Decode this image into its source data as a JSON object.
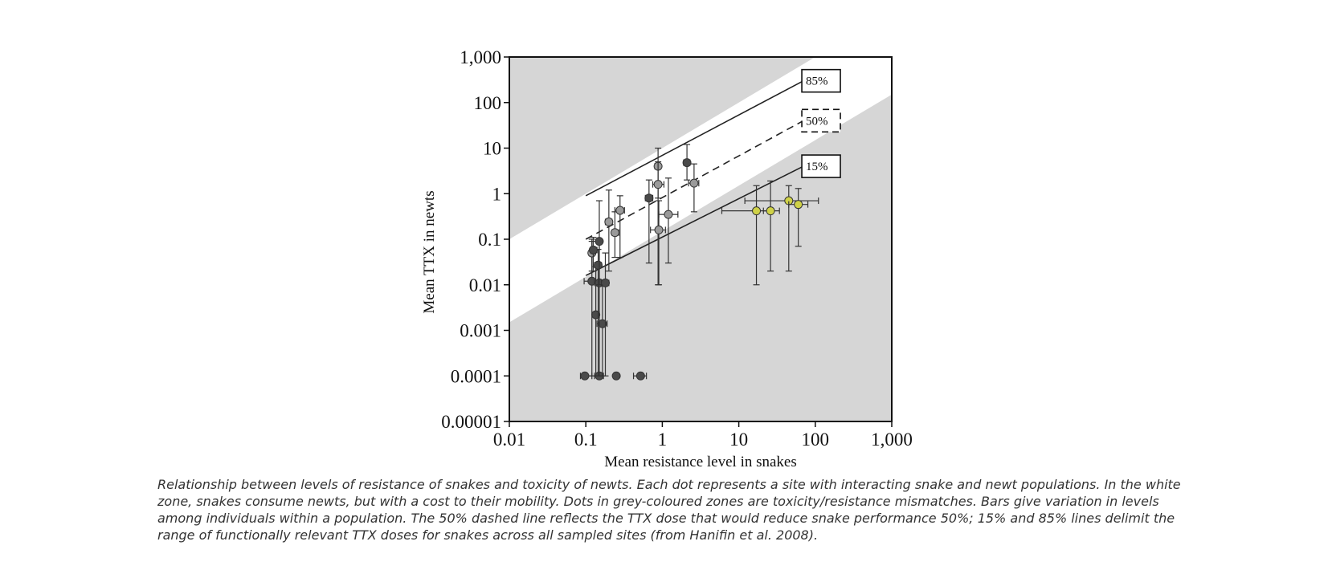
{
  "chart_data": {
    "type": "scatter",
    "xlabel": "Mean resistance level in snakes",
    "ylabel": "Mean TTX in newts",
    "xscale": "log",
    "yscale": "log",
    "xlim": [
      0.01,
      1000
    ],
    "ylim": [
      1e-05,
      1000
    ],
    "x_ticks": [
      "0.01",
      "0.1",
      "1",
      "10",
      "100",
      "1,000"
    ],
    "y_ticks": [
      "0.00001",
      "0.0001",
      "0.001",
      "0.01",
      "0.1",
      "1",
      "10",
      "100",
      "1,000"
    ],
    "colors": {
      "grey_zone": "#d6d6d6",
      "white_zone": "#ffffff",
      "dark_dot": "#4a4a4a",
      "grey_dot": "#9a9a9a",
      "yellow_dot": "#cfd147"
    },
    "reference_lines": [
      {
        "label": "85%",
        "style": "solid",
        "points": [
          [
            0.1,
            0.9
          ],
          [
            70,
            300
          ]
        ]
      },
      {
        "label": "50%",
        "style": "dashed",
        "points": [
          [
            0.1,
            0.1
          ],
          [
            70,
            40
          ]
        ]
      },
      {
        "label": "15%",
        "style": "solid",
        "points": [
          [
            0.1,
            0.016
          ],
          [
            70,
            4
          ]
        ]
      }
    ],
    "zone_boundaries": [
      {
        "points": [
          [
            0.01,
            0.1
          ],
          [
            100,
            1000
          ]
        ]
      },
      {
        "points": [
          [
            0.01,
            0.0015
          ],
          [
            1000,
            150
          ]
        ]
      }
    ],
    "points": [
      {
        "x": 0.097,
        "y": 0.0001,
        "xerr": [
          0.085,
          0.12
        ],
        "yerr": [
          0.0001,
          0.0001
        ],
        "tone": "dark"
      },
      {
        "x": 0.15,
        "y": 0.0001,
        "xerr": [
          0.13,
          0.17
        ],
        "yerr": [
          0.0001,
          0.0001
        ],
        "tone": "dark"
      },
      {
        "x": 0.25,
        "y": 0.0001,
        "xerr": [
          0.25,
          0.25
        ],
        "yerr": [
          0.0001,
          0.0001
        ],
        "tone": "dark"
      },
      {
        "x": 0.52,
        "y": 0.0001,
        "xerr": [
          0.42,
          0.62
        ],
        "yerr": [
          0.0001,
          0.0001
        ],
        "tone": "dark"
      },
      {
        "x": 0.135,
        "y": 0.0022,
        "xerr": [
          0.125,
          0.15
        ],
        "yerr": [
          0.0001,
          0.025
        ],
        "tone": "dark"
      },
      {
        "x": 0.165,
        "y": 0.0014,
        "xerr": [
          0.14,
          0.19
        ],
        "yerr": [
          0.0001,
          0.01
        ],
        "tone": "dark"
      },
      {
        "x": 0.12,
        "y": 0.012,
        "xerr": [
          0.095,
          0.15
        ],
        "yerr": [
          0.0001,
          0.1
        ],
        "tone": "dark"
      },
      {
        "x": 0.15,
        "y": 0.011,
        "xerr": [
          0.13,
          0.17
        ],
        "yerr": [
          0.0001,
          0.09
        ],
        "tone": "dark"
      },
      {
        "x": 0.18,
        "y": 0.011,
        "xerr": [
          0.16,
          0.2
        ],
        "yerr": [
          0.0001,
          0.05
        ],
        "tone": "dark"
      },
      {
        "x": 0.145,
        "y": 0.027,
        "xerr": [
          0.13,
          0.16
        ],
        "yerr": [
          0.0001,
          0.06
        ],
        "tone": "dark"
      },
      {
        "x": 0.12,
        "y": 0.05,
        "xerr": [
          0.11,
          0.13
        ],
        "yerr": [
          0.02,
          0.09
        ],
        "tone": "grey"
      },
      {
        "x": 0.125,
        "y": 0.058,
        "xerr": [
          0.115,
          0.14
        ],
        "yerr": [
          0.02,
          0.11
        ],
        "tone": "dark"
      },
      {
        "x": 0.15,
        "y": 0.09,
        "xerr": [
          0.14,
          0.16
        ],
        "yerr": [
          0.01,
          0.7
        ],
        "tone": "dark"
      },
      {
        "x": 0.2,
        "y": 0.24,
        "xerr": [
          0.18,
          0.22
        ],
        "yerr": [
          0.02,
          1.2
        ],
        "tone": "grey"
      },
      {
        "x": 0.24,
        "y": 0.14,
        "xerr": [
          0.22,
          0.27
        ],
        "yerr": [
          0.04,
          0.4
        ],
        "tone": "grey"
      },
      {
        "x": 0.28,
        "y": 0.43,
        "xerr": [
          0.24,
          0.32
        ],
        "yerr": [
          0.04,
          0.9
        ],
        "tone": "grey"
      },
      {
        "x": 0.67,
        "y": 0.8,
        "xerr": [
          0.6,
          0.75
        ],
        "yerr": [
          0.03,
          2
        ],
        "tone": "dark"
      },
      {
        "x": 0.88,
        "y": 4,
        "xerr": [
          0.8,
          0.95
        ],
        "yerr": [
          0.8,
          10
        ],
        "tone": "grey"
      },
      {
        "x": 0.88,
        "y": 1.6,
        "xerr": [
          0.75,
          1.05
        ],
        "yerr": [
          0.01,
          5
        ],
        "tone": "grey"
      },
      {
        "x": 0.9,
        "y": 0.16,
        "xerr": [
          0.7,
          1.1
        ],
        "yerr": [
          0.01,
          0.7
        ],
        "tone": "grey"
      },
      {
        "x": 1.2,
        "y": 0.35,
        "xerr": [
          0.9,
          1.6
        ],
        "yerr": [
          0.03,
          2.2
        ],
        "tone": "grey"
      },
      {
        "x": 2.1,
        "y": 4.8,
        "xerr": [
          1.9,
          2.3
        ],
        "yerr": [
          2,
          12
        ],
        "tone": "dark"
      },
      {
        "x": 2.6,
        "y": 1.7,
        "xerr": [
          2.2,
          3.0
        ],
        "yerr": [
          0.4,
          4.5
        ],
        "tone": "grey"
      },
      {
        "x": 17,
        "y": 0.42,
        "xerr": [
          6,
          25
        ],
        "yerr": [
          0.01,
          1.5
        ],
        "tone": "yellow"
      },
      {
        "x": 26,
        "y": 0.42,
        "xerr": [
          21,
          34
        ],
        "yerr": [
          0.02,
          1.9
        ],
        "tone": "yellow"
      },
      {
        "x": 45,
        "y": 0.7,
        "xerr": [
          12,
          110
        ],
        "yerr": [
          0.02,
          1.5
        ],
        "tone": "yellow"
      },
      {
        "x": 60,
        "y": 0.58,
        "xerr": [
          45,
          80
        ],
        "yerr": [
          0.07,
          1.3
        ],
        "tone": "yellow"
      }
    ]
  },
  "caption": "Relationship between levels of resistance of snakes and toxicity of newts. Each dot represents a site with interacting snake and newt populations. In the white zone, snakes consume newts, but with a cost to their mobility. Dots in grey-coloured zones are toxicity/resistance mismatches. Bars give variation in levels among individuals within a population. The 50% dashed line reflects the TTX dose that would reduce snake performance 50%; 15% and 85% lines delimit the range of functionally relevant TTX doses for snakes across all sampled sites (from Hanifin et al. 2008)."
}
